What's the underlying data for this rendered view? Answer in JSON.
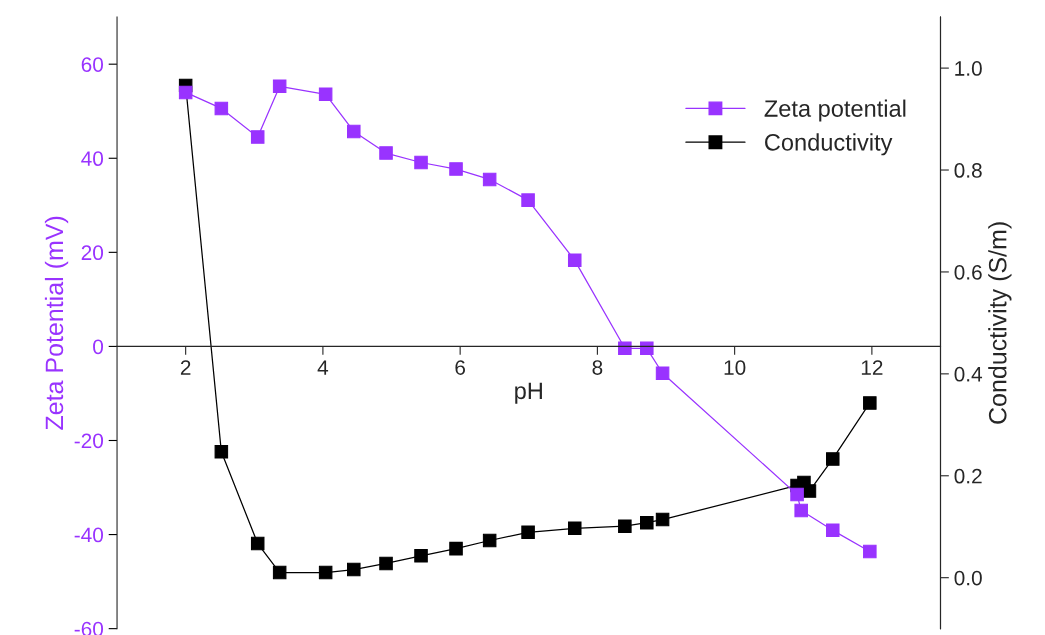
{
  "chart_data": {
    "type": "line",
    "xlabel": "pH",
    "ylabel": "Zeta Potential (mV)",
    "y2label": "Conductivity (S/m)",
    "xlim": [
      1,
      13
    ],
    "xticks": [
      2,
      4,
      6,
      8,
      10,
      12
    ],
    "ylim": [
      -60,
      70
    ],
    "yticks": [
      -60,
      -40,
      -20,
      0,
      20,
      40,
      60
    ],
    "y2lim": [
      -0.1,
      1.1
    ],
    "y2ticks": [
      {
        "value": 0,
        "label": "0.0"
      },
      {
        "value": 0.2,
        "label": "0.2"
      },
      {
        "value": 0.4,
        "label": "0.4"
      },
      {
        "value": 0.6,
        "label": "0.6"
      },
      {
        "value": 0.8,
        "label": "0.8"
      },
      {
        "value": 1,
        "label": "1.0"
      }
    ],
    "marker": "square",
    "line_style": "solid",
    "grid": false,
    "legend": "top right",
    "series": [
      {
        "name": "Zeta potential",
        "color": "#9933ff",
        "x": [
          2.0,
          2.52,
          3.05,
          3.37,
          4.04,
          4.45,
          4.92,
          5.43,
          5.94,
          6.43,
          6.99,
          7.67,
          8.4,
          8.72,
          8.95,
          10.91,
          10.97,
          11.43,
          11.97
        ],
        "values": [
          54,
          50.6,
          44.5,
          55.3,
          53.6,
          45.7,
          41.1,
          39.1,
          37.7,
          35.5,
          31.1,
          18.3,
          -0.4,
          -0.4,
          -5.7,
          -31.5,
          -34.9,
          -39.1,
          -43.6
        ]
      },
      {
        "name": "Conductivity",
        "color": "#000000",
        "axis": "y2",
        "x": [
          2.0,
          2.52,
          3.05,
          3.37,
          4.04,
          4.45,
          4.92,
          5.43,
          5.94,
          6.43,
          6.99,
          7.67,
          8.4,
          8.72,
          8.95,
          10.91,
          11.01,
          11.09,
          11.43,
          11.97
        ],
        "values": [
          0.966,
          0.247,
          0.067,
          0.01,
          0.01,
          0.016,
          0.028,
          0.043,
          0.057,
          0.073,
          0.089,
          0.097,
          0.101,
          0.108,
          0.114,
          0.181,
          0.187,
          0.17,
          0.233,
          0.343
        ]
      }
    ]
  }
}
